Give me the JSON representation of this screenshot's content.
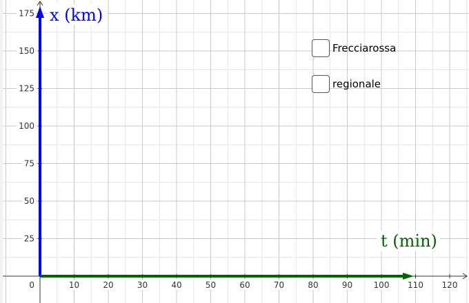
{
  "axes": {
    "y_label": "x (km)",
    "x_label": "t (min)",
    "y_ticks": [
      "25",
      "50",
      "75",
      "100",
      "125",
      "150",
      "175"
    ],
    "x_ticks": [
      "10",
      "20",
      "30",
      "40",
      "50",
      "60",
      "70",
      "80",
      "90",
      "100",
      "110",
      "120"
    ],
    "origin_label": "0",
    "y_axis_color": "#0000ff",
    "x_axis_color": "#006400",
    "grid": true
  },
  "checkboxes": [
    {
      "label": "Frecciarossa",
      "checked": false
    },
    {
      "label": "regionale",
      "checked": false
    }
  ]
}
